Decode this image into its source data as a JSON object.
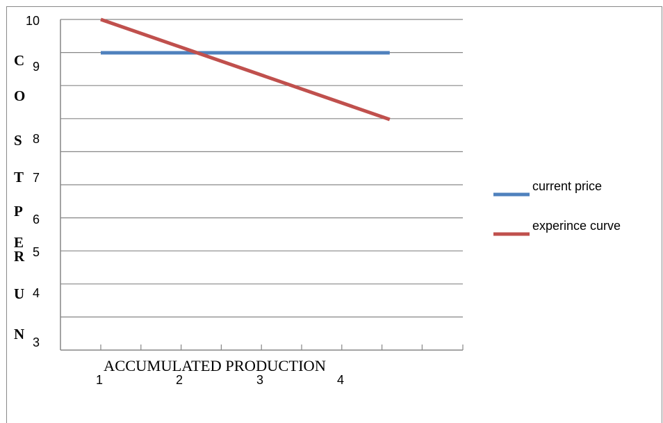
{
  "chart_data": {
    "type": "line",
    "ylabel": "COST PER UN",
    "xlabel": "ACCUMULATED PRODUCTION",
    "y_tick_labels": [
      "10",
      "9",
      "8",
      "7",
      "6",
      "5",
      "4",
      "3"
    ],
    "x_tick_labels": [
      "1",
      "2",
      "3",
      "4"
    ],
    "series": [
      {
        "name": "current price",
        "color": "#4F81BD",
        "x": [
          1,
          4.6
        ],
        "y": [
          9.0,
          9.0
        ]
      },
      {
        "name": "experince curve",
        "color": "#C0504D",
        "x": [
          1,
          4.6
        ],
        "y": [
          10.0,
          7.0
        ]
      }
    ],
    "legend": "right",
    "grid": true
  }
}
